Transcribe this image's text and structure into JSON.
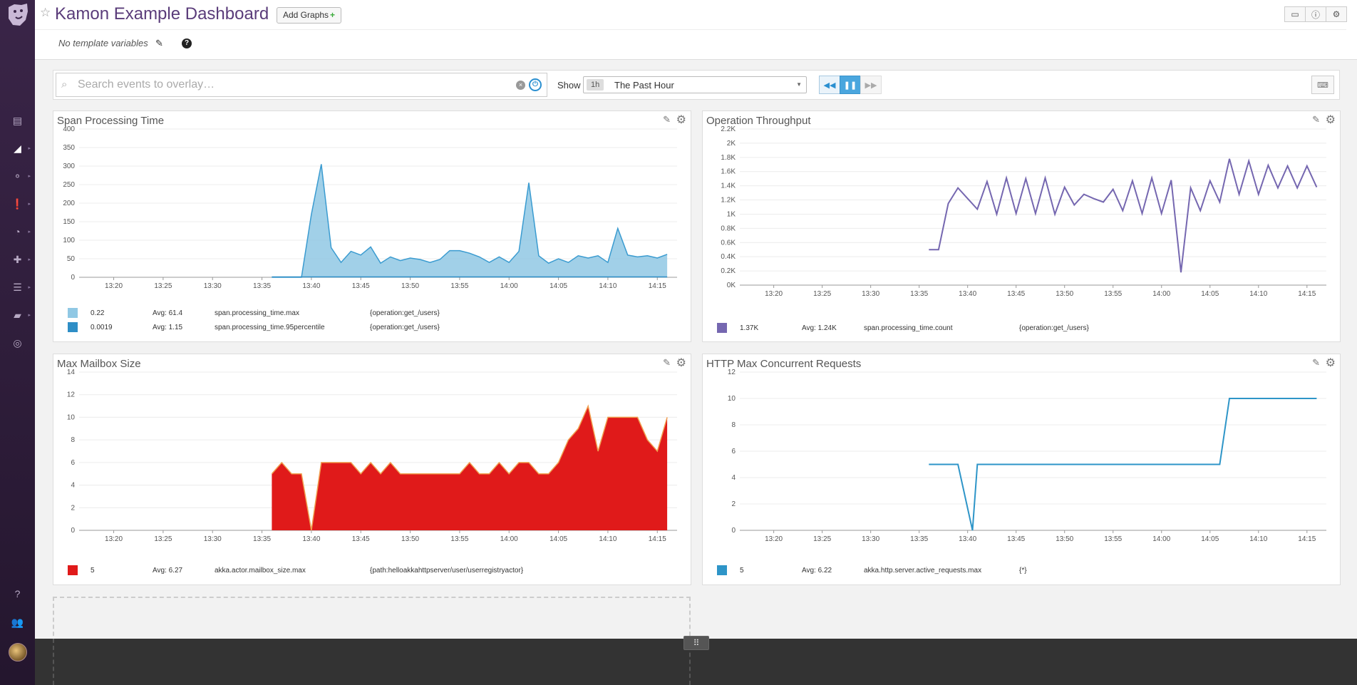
{
  "header": {
    "title": "Kamon Example Dashboard",
    "add_graphs_label": "Add Graphs",
    "template_vars_text": "No template variables"
  },
  "icons": {
    "star": "star-icon",
    "pencil": "pencil-icon",
    "help": "help-icon",
    "tv": "tv-icon",
    "info": "info-icon",
    "gear": "gear-icon"
  },
  "controls": {
    "search_placeholder": "Search events to overlay…",
    "show_label": "Show",
    "time_badge": "1h",
    "time_label": "The Past Hour"
  },
  "colors": {
    "accent": "#5a3c7a",
    "blue_light": "#90c8e4",
    "blue": "#2e8ec6",
    "purple": "#7567b0",
    "red": "#e01a1a",
    "http_blue": "#2e95c8"
  },
  "widgets": [
    {
      "title": "Span Processing Time",
      "legend": [
        {
          "value": "0.22",
          "avg": "Avg: 61.4",
          "metric": "span.processing_time.max",
          "scope": "{operation:get_/users}"
        },
        {
          "value": "0.0019",
          "avg": "Avg: 1.15",
          "metric": "span.processing_time.95percentile",
          "scope": "{operation:get_/users}"
        }
      ]
    },
    {
      "title": "Operation Throughput",
      "legend": [
        {
          "value": "1.37K",
          "avg": "Avg: 1.24K",
          "metric": "span.processing_time.count",
          "scope": "{operation:get_/users}"
        }
      ]
    },
    {
      "title": "Max Mailbox Size",
      "legend": [
        {
          "value": "5",
          "avg": "Avg: 6.27",
          "metric": "akka.actor.mailbox_size.max",
          "scope": "{path:helloakkahttpserver/user/userregistryactor}"
        }
      ]
    },
    {
      "title": "HTTP Max Concurrent Requests",
      "legend": [
        {
          "value": "5",
          "avg": "Avg: 6.22",
          "metric": "akka.http.server.active_requests.max",
          "scope": "{*}"
        }
      ]
    }
  ],
  "chart_data": [
    {
      "type": "area",
      "title": "Span Processing Time",
      "x_ticks": [
        "13:20",
        "13:25",
        "13:30",
        "13:35",
        "13:40",
        "13:45",
        "13:50",
        "13:55",
        "14:00",
        "14:05",
        "14:10",
        "14:15"
      ],
      "y_ticks": [
        "0",
        "50",
        "100",
        "150",
        "200",
        "250",
        "300",
        "350",
        "400"
      ],
      "ylim": [
        0,
        400
      ],
      "x_minutes": [
        16,
        17,
        18,
        19,
        20,
        21,
        22,
        23,
        24,
        25,
        26,
        27,
        28,
        29,
        30,
        31,
        32,
        33,
        34,
        35,
        36,
        37,
        38,
        39,
        40,
        41,
        42,
        43,
        44,
        45,
        46,
        47,
        48,
        49,
        50,
        51,
        52,
        53,
        54,
        55,
        56,
        57,
        58,
        59,
        60,
        61,
        62,
        63,
        64,
        65,
        66,
        67,
        68,
        69,
        70,
        71,
        72,
        73,
        74,
        75,
        76
      ],
      "series": [
        {
          "name": "span.processing_time.max",
          "color": "#90c8e4",
          "x": [
            36,
            38,
            39,
            40,
            41,
            42,
            43,
            44,
            45,
            46,
            47,
            48,
            49,
            50,
            51,
            52,
            53,
            54,
            55,
            56,
            57,
            58,
            59,
            60,
            61,
            62,
            63,
            64,
            65,
            66,
            67,
            68,
            69,
            70,
            71,
            72,
            73,
            74,
            75,
            76
          ],
          "values": [
            0,
            0,
            0,
            170,
            305,
            80,
            40,
            70,
            60,
            82,
            38,
            55,
            45,
            52,
            48,
            40,
            48,
            72,
            72,
            65,
            55,
            40,
            55,
            40,
            70,
            255,
            58,
            38,
            50,
            40,
            58,
            52,
            58,
            40,
            132,
            60,
            55,
            58,
            52,
            62
          ]
        },
        {
          "name": "span.processing_time.95percentile",
          "color": "#2e8ec6",
          "x": [
            36,
            76
          ],
          "values": [
            1,
            1
          ]
        }
      ]
    },
    {
      "type": "line",
      "title": "Operation Throughput",
      "x_ticks": [
        "13:20",
        "13:25",
        "13:30",
        "13:35",
        "13:40",
        "13:45",
        "13:50",
        "13:55",
        "14:00",
        "14:05",
        "14:10",
        "14:15"
      ],
      "y_ticks": [
        "0K",
        "0.2K",
        "0.4K",
        "0.6K",
        "0.8K",
        "1K",
        "1.2K",
        "1.4K",
        "1.6K",
        "1.8K",
        "2K",
        "2.2K"
      ],
      "ylim": [
        0,
        2200
      ],
      "series": [
        {
          "name": "span.processing_time.count",
          "color": "#7567b0",
          "x": [
            36,
            37,
            38,
            39,
            40,
            41,
            42,
            43,
            44,
            45,
            46,
            47,
            48,
            49,
            50,
            51,
            52,
            53,
            54,
            55,
            56,
            57,
            58,
            59,
            60,
            61,
            62,
            63,
            64,
            65,
            66,
            67,
            68,
            69,
            70,
            71,
            72,
            73,
            74,
            75,
            76
          ],
          "values": [
            500,
            500,
            1150,
            1370,
            1220,
            1070,
            1460,
            1000,
            1510,
            1010,
            1500,
            1010,
            1510,
            1000,
            1380,
            1130,
            1280,
            1220,
            1170,
            1350,
            1050,
            1470,
            1010,
            1510,
            1010,
            1480,
            180,
            1370,
            1050,
            1470,
            1170,
            1780,
            1280,
            1750,
            1280,
            1690,
            1370,
            1680,
            1370,
            1680,
            1380
          ]
        }
      ]
    },
    {
      "type": "area",
      "title": "Max Mailbox Size",
      "x_ticks": [
        "13:20",
        "13:25",
        "13:30",
        "13:35",
        "13:40",
        "13:45",
        "13:50",
        "13:55",
        "14:00",
        "14:05",
        "14:10",
        "14:15"
      ],
      "y_ticks": [
        "0",
        "2",
        "4",
        "6",
        "8",
        "10",
        "12",
        "14"
      ],
      "ylim": [
        0,
        14
      ],
      "series": [
        {
          "name": "akka.actor.mailbox_size.max",
          "color": "#e01a1a",
          "x": [
            36,
            37,
            38,
            39,
            40,
            41,
            42,
            43,
            44,
            45,
            46,
            47,
            48,
            49,
            50,
            51,
            52,
            53,
            54,
            55,
            56,
            57,
            58,
            59,
            60,
            61,
            62,
            63,
            64,
            65,
            66,
            67,
            68,
            69,
            70,
            71,
            72,
            73,
            74,
            75,
            76
          ],
          "values": [
            5,
            6,
            5,
            5,
            0,
            6,
            6,
            6,
            6,
            5,
            6,
            5,
            6,
            5,
            5,
            5,
            5,
            5,
            5,
            5,
            6,
            5,
            5,
            6,
            5,
            6,
            6,
            5,
            5,
            6,
            8,
            9,
            11,
            7,
            10,
            10,
            10,
            10,
            8,
            7,
            10
          ]
        }
      ]
    },
    {
      "type": "line",
      "title": "HTTP Max Concurrent Requests",
      "x_ticks": [
        "13:20",
        "13:25",
        "13:30",
        "13:35",
        "13:40",
        "13:45",
        "13:50",
        "13:55",
        "14:00",
        "14:05",
        "14:10",
        "14:15"
      ],
      "y_ticks": [
        "0",
        "2",
        "4",
        "6",
        "8",
        "10",
        "12"
      ],
      "ylim": [
        0,
        12
      ],
      "series": [
        {
          "name": "akka.http.server.active_requests.max",
          "color": "#2e95c8",
          "x": [
            36,
            39,
            40.5,
            41,
            66,
            67,
            76
          ],
          "values": [
            5,
            5,
            0,
            5,
            5,
            10,
            10
          ]
        }
      ]
    }
  ]
}
